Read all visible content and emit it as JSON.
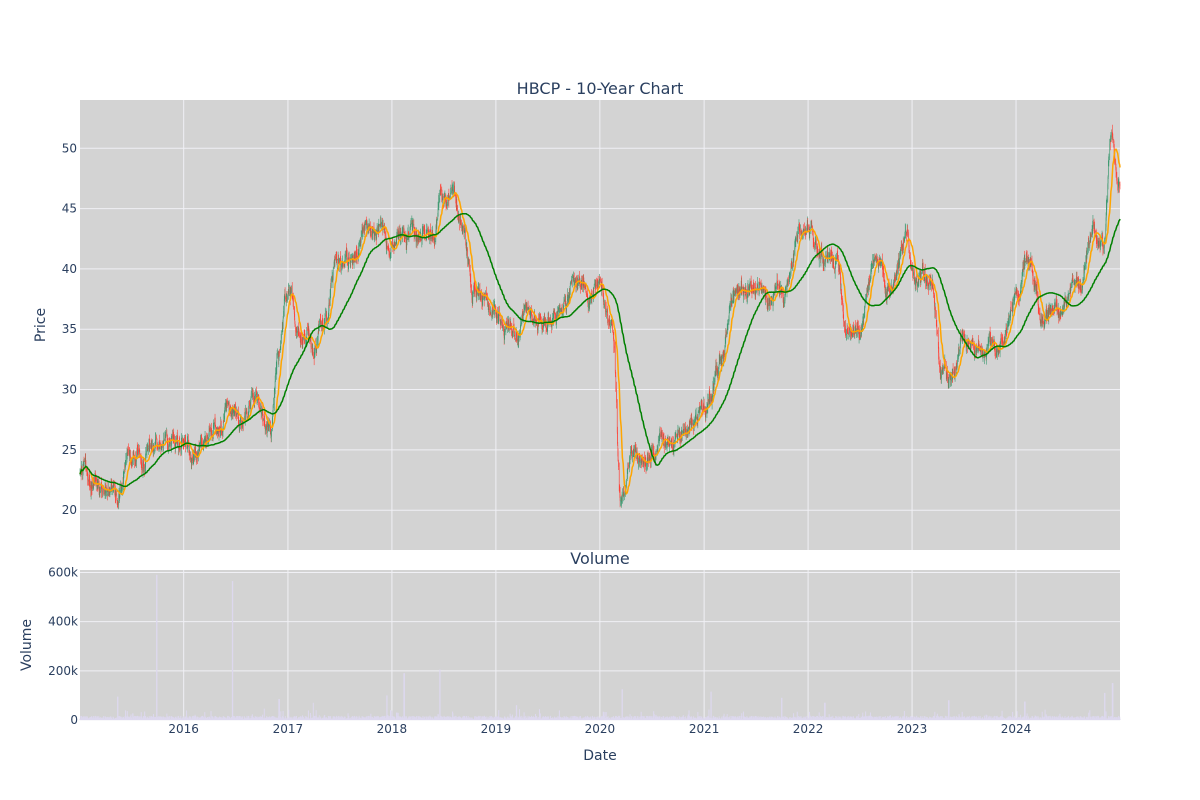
{
  "colors": {
    "plot_bg": "#d3d3d3",
    "grid": "#f0f0f5",
    "increasing": "#3d9970",
    "decreasing": "#ff4136",
    "ma_short": "#ffa500",
    "ma_long": "#008000",
    "volume": "#ddd8ee"
  },
  "chart_data": [
    {
      "type": "candlestick",
      "title": "HBCP - 10-Year Chart",
      "ylabel": "Price",
      "ylim": [
        16.7,
        54
      ],
      "yticks": [
        20,
        25,
        30,
        35,
        40,
        45,
        50
      ],
      "xlim": [
        "2015-01-02",
        "2024-12-31"
      ],
      "grid": true,
      "series": [
        {
          "kind": "ohlc",
          "anchors": [
            [
              "2015-01-02",
              23.0
            ],
            [
              "2015-03-01",
              21.3
            ],
            [
              "2015-05-01",
              21.8
            ],
            [
              "2015-07-01",
              24.6
            ],
            [
              "2015-09-01",
              25.2
            ],
            [
              "2015-11-01",
              26.0
            ],
            [
              "2016-01-01",
              26.2
            ],
            [
              "2016-02-10",
              24.5
            ],
            [
              "2016-04-01",
              26.5
            ],
            [
              "2016-06-01",
              28.0
            ],
            [
              "2016-07-15",
              27.5
            ],
            [
              "2016-09-01",
              28.8
            ],
            [
              "2016-11-01",
              27.8
            ],
            [
              "2016-11-25",
              32.5
            ],
            [
              "2016-12-31",
              38.5
            ],
            [
              "2017-02-01",
              36.0
            ],
            [
              "2017-04-01",
              33.5
            ],
            [
              "2017-05-15",
              36.5
            ],
            [
              "2017-06-20",
              41.0
            ],
            [
              "2017-08-01",
              40.5
            ],
            [
              "2017-10-01",
              42.5
            ],
            [
              "2017-12-01",
              42.0
            ],
            [
              "2018-02-01",
              42.8
            ],
            [
              "2018-04-01",
              42.0
            ],
            [
              "2018-06-01",
              44.0
            ],
            [
              "2018-06-20",
              47.0
            ],
            [
              "2018-08-01",
              46.0
            ],
            [
              "2018-09-01",
              43.5
            ],
            [
              "2018-10-15",
              38.5
            ],
            [
              "2018-12-15",
              36.5
            ],
            [
              "2019-03-01",
              35.5
            ],
            [
              "2019-05-01",
              36.0
            ],
            [
              "2019-07-01",
              36.2
            ],
            [
              "2019-09-01",
              38.0
            ],
            [
              "2019-11-01",
              39.0
            ],
            [
              "2019-12-31",
              38.0
            ],
            [
              "2020-02-15",
              35.5
            ],
            [
              "2020-03-15",
              21.0
            ],
            [
              "2020-04-15",
              25.0
            ],
            [
              "2020-06-01",
              24.0
            ],
            [
              "2020-08-01",
              24.5
            ],
            [
              "2020-10-01",
              25.0
            ],
            [
              "2020-12-01",
              28.0
            ],
            [
              "2021-01-15",
              29.0
            ],
            [
              "2021-03-01",
              32.5
            ],
            [
              "2021-04-15",
              37.5
            ],
            [
              "2021-06-15",
              38.5
            ],
            [
              "2021-08-15",
              37.0
            ],
            [
              "2021-10-15",
              38.0
            ],
            [
              "2021-12-01",
              42.5
            ],
            [
              "2022-01-15",
              42.0
            ],
            [
              "2022-03-01",
              40.0
            ],
            [
              "2022-04-15",
              40.5
            ],
            [
              "2022-05-15",
              36.0
            ],
            [
              "2022-07-01",
              35.0
            ],
            [
              "2022-08-15",
              40.0
            ],
            [
              "2022-10-15",
              39.0
            ],
            [
              "2022-12-01",
              42.5
            ],
            [
              "2023-02-01",
              39.0
            ],
            [
              "2023-03-15",
              38.5
            ],
            [
              "2023-04-15",
              32.0
            ],
            [
              "2023-05-15",
              30.5
            ],
            [
              "2023-07-01",
              34.5
            ],
            [
              "2023-09-01",
              33.0
            ],
            [
              "2023-11-01",
              33.5
            ],
            [
              "2023-12-31",
              38.0
            ],
            [
              "2024-02-15",
              41.5
            ],
            [
              "2024-04-01",
              37.0
            ],
            [
              "2024-06-15",
              36.5
            ],
            [
              "2024-08-15",
              38.0
            ],
            [
              "2024-10-01",
              43.0
            ],
            [
              "2024-11-01",
              42.5
            ],
            [
              "2024-12-01",
              51.5
            ],
            [
              "2024-12-31",
              47.0
            ]
          ]
        },
        {
          "kind": "moving_average",
          "window": 20
        },
        {
          "kind": "moving_average",
          "window": 100
        }
      ]
    },
    {
      "type": "bar",
      "title": "Volume",
      "ylabel": "Volume",
      "xlabel": "Date",
      "ylim": [
        0,
        610000
      ],
      "yticks": [
        0,
        200000,
        400000,
        600000
      ],
      "ytick_labels": [
        "0",
        "200k",
        "400k",
        "600k"
      ],
      "xticks": [
        "2016-01-01",
        "2017-01-01",
        "2018-01-01",
        "2019-01-01",
        "2020-01-01",
        "2021-01-01",
        "2022-01-01",
        "2023-01-01",
        "2024-01-01"
      ],
      "xtick_labels": [
        "2016",
        "2017",
        "2018",
        "2019",
        "2020",
        "2021",
        "2022",
        "2023",
        "2024"
      ],
      "typical_volume": 10000,
      "spikes": [
        [
          "2015-09-28",
          590000
        ],
        [
          "2016-06-20",
          565000
        ],
        [
          "2018-02-13",
          190000
        ],
        [
          "2018-06-18",
          205000
        ],
        [
          "2015-05-15",
          95000
        ],
        [
          "2017-12-15",
          100000
        ],
        [
          "2020-03-20",
          125000
        ],
        [
          "2021-01-25",
          115000
        ],
        [
          "2024-12-05",
          150000
        ],
        [
          "2024-11-08",
          110000
        ],
        [
          "2023-05-10",
          80000
        ],
        [
          "2022-03-01",
          70000
        ],
        [
          "2016-12-01",
          85000
        ],
        [
          "2017-04-01",
          70000
        ],
        [
          "2019-03-15",
          60000
        ],
        [
          "2024-02-01",
          75000
        ],
        [
          "2021-10-01",
          90000
        ]
      ]
    }
  ]
}
